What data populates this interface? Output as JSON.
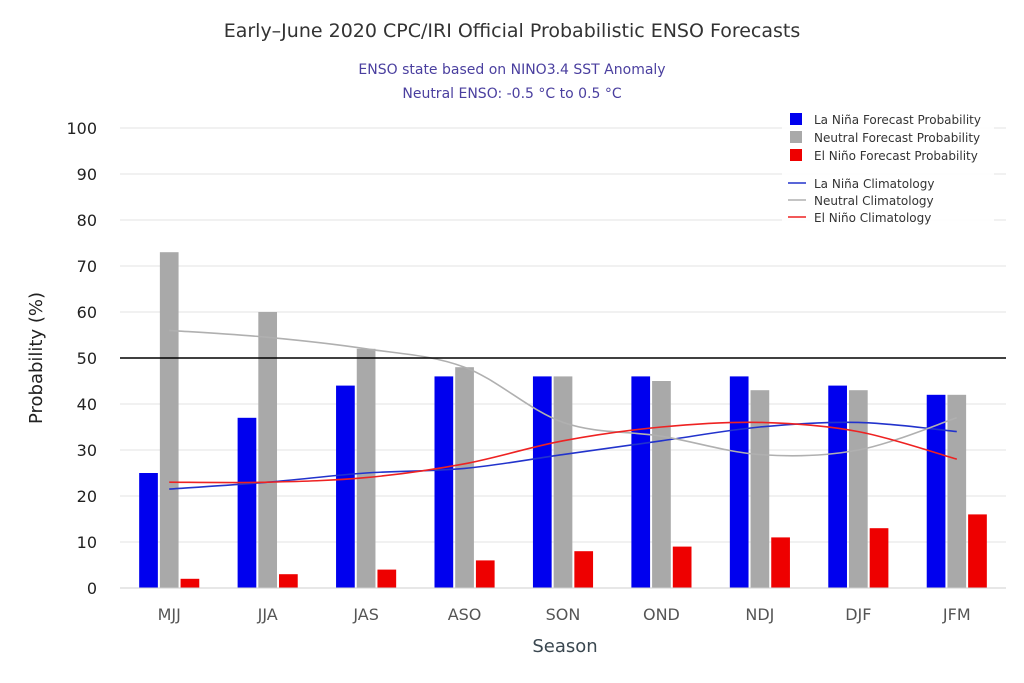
{
  "chart_data": {
    "type": "bar",
    "title": "Early–June 2020 CPC/IRI Official Probabilistic ENSO Forecasts",
    "subtitle_lines": [
      "ENSO state based on NINO3.4 SST Anomaly",
      "Neutral ENSO: -0.5 °C to 0.5 °C"
    ],
    "xlabel": "Season",
    "ylabel": "Probability (%)",
    "ylim": [
      0,
      100
    ],
    "yticks": [
      0,
      10,
      20,
      30,
      40,
      50,
      60,
      70,
      80,
      90,
      100
    ],
    "reference_line": 50,
    "grid": true,
    "legend_position": "top-right",
    "categories": [
      "MJJ",
      "JJA",
      "JAS",
      "ASO",
      "SON",
      "OND",
      "NDJ",
      "DJF",
      "JFM"
    ],
    "series": [
      {
        "name": "La Niña Forecast Probability",
        "kind": "bar",
        "color": "#0000ee",
        "values": [
          25,
          37,
          44,
          46,
          46,
          46,
          46,
          44,
          42
        ]
      },
      {
        "name": "Neutral Forecast Probability",
        "kind": "bar",
        "color": "#a9a9a9",
        "values": [
          73,
          60,
          52,
          48,
          46,
          45,
          43,
          43,
          42
        ]
      },
      {
        "name": "El Niño Forecast Probability",
        "kind": "bar",
        "color": "#ee0000",
        "values": [
          2,
          3,
          4,
          6,
          8,
          9,
          11,
          13,
          16
        ]
      },
      {
        "name": "La Niña Climatology",
        "kind": "line",
        "color": "#2233cc",
        "values": [
          21.5,
          23,
          25,
          26,
          29,
          32,
          35,
          36,
          34
        ]
      },
      {
        "name": "Neutral Climatology",
        "kind": "line",
        "color": "#b0b0b0",
        "values": [
          56,
          54.5,
          52,
          48,
          36,
          33,
          29,
          30,
          37
        ]
      },
      {
        "name": "El Niño Climatology",
        "kind": "line",
        "color": "#ee2222",
        "values": [
          23,
          23,
          24,
          27,
          32,
          35,
          36,
          34,
          28
        ]
      }
    ]
  }
}
